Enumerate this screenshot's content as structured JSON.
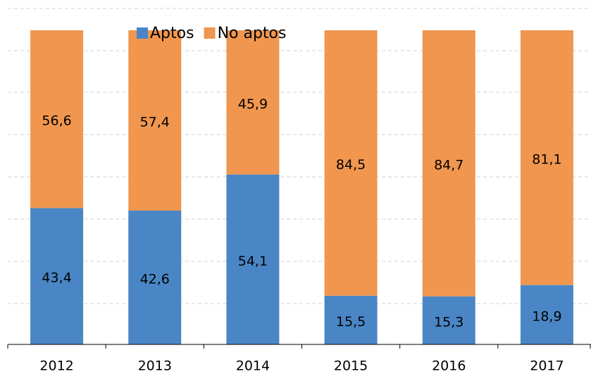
{
  "chart_data": {
    "type": "bar",
    "stacked": true,
    "categories": [
      "2012",
      "2013",
      "2014",
      "2015",
      "2016",
      "2017"
    ],
    "series": [
      {
        "name": "Aptos",
        "color": "#4a86c5",
        "values": [
          43.4,
          42.6,
          54.1,
          15.5,
          15.3,
          18.9
        ],
        "value_labels": [
          "43,4",
          "42,6",
          "54,1",
          "15,5",
          "15,3",
          "18,9"
        ]
      },
      {
        "name": "No aptos",
        "color": "#f0964f",
        "values": [
          56.6,
          57.4,
          45.9,
          84.5,
          84.7,
          81.1
        ],
        "value_labels": [
          "56,6",
          "57,4",
          "45,9",
          "84,5",
          "84,7",
          "81,1"
        ]
      }
    ],
    "ylim": [
      0,
      100
    ]
  }
}
